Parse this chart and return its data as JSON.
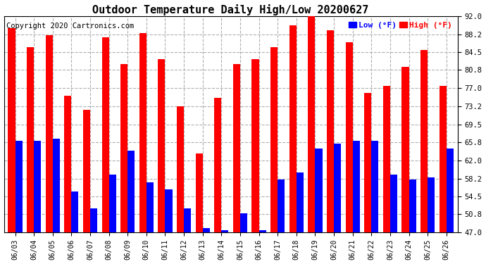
{
  "title": "Outdoor Temperature Daily High/Low 20200627",
  "copyright": "Copyright 2020 Cartronics.com",
  "dates": [
    "06/03",
    "06/04",
    "06/05",
    "06/06",
    "06/07",
    "06/08",
    "06/09",
    "06/10",
    "06/11",
    "06/12",
    "06/13",
    "06/14",
    "06/15",
    "06/16",
    "06/17",
    "06/18",
    "06/19",
    "06/20",
    "06/21",
    "06/22",
    "06/23",
    "06/24",
    "06/25",
    "06/26"
  ],
  "highs": [
    89.5,
    85.5,
    88.0,
    75.5,
    72.5,
    87.5,
    82.0,
    88.5,
    83.0,
    73.2,
    63.5,
    75.0,
    82.0,
    83.0,
    85.5,
    90.0,
    92.5,
    89.0,
    86.5,
    76.0,
    77.5,
    81.5,
    85.0,
    77.5
  ],
  "lows": [
    66.0,
    66.0,
    66.5,
    55.5,
    52.0,
    59.0,
    64.0,
    57.5,
    56.0,
    52.0,
    48.0,
    47.5,
    51.0,
    47.5,
    58.0,
    59.5,
    64.5,
    65.5,
    66.0,
    66.0,
    59.0,
    58.0,
    58.5,
    64.5
  ],
  "ylim_min": 47.0,
  "ylim_max": 92.0,
  "yticks": [
    47.0,
    50.8,
    54.5,
    58.2,
    62.0,
    65.8,
    69.5,
    73.2,
    77.0,
    80.8,
    84.5,
    88.2,
    92.0
  ],
  "high_color": "#ff0000",
  "low_color": "#0000ff",
  "bg_color": "#ffffff",
  "grid_color": "#b0b0b0",
  "title_fontsize": 11,
  "copyright_fontsize": 7.5,
  "bar_width": 0.38
}
